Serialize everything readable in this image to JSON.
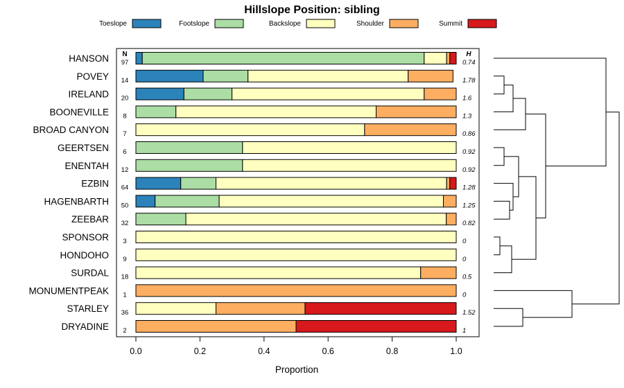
{
  "chart_data": {
    "type": "bar",
    "orientation": "horizontal",
    "stacked": true,
    "title": "Hillslope Position: sibling",
    "xlabel": "Proportion",
    "xlim": [
      0,
      1
    ],
    "xticks": [
      "0.0",
      "0.2",
      "0.4",
      "0.6",
      "0.8",
      "1.0"
    ],
    "n_header": "N",
    "h_header": "H",
    "legend_position": "top",
    "series_colors": {
      "Toeslope": "#2b83ba",
      "Footslope": "#abdda4",
      "Backslope": "#ffffbf",
      "Shoulder": "#fdae61",
      "Summit": "#d7191c"
    },
    "series": [
      {
        "name": "Toeslope"
      },
      {
        "name": "Footslope"
      },
      {
        "name": "Backslope"
      },
      {
        "name": "Shoulder"
      },
      {
        "name": "Summit"
      }
    ],
    "categories": [
      {
        "name": "HANSON",
        "n": "97",
        "h": "0.74",
        "values": [
          0.02,
          0.88,
          0.07,
          0.01,
          0.02
        ]
      },
      {
        "name": "POVEY",
        "n": "14",
        "h": "1.78",
        "values": [
          0.21,
          0.14,
          0.5,
          0.14,
          0.0
        ]
      },
      {
        "name": "IRELAND",
        "n": "20",
        "h": "1.6",
        "values": [
          0.15,
          0.15,
          0.6,
          0.1,
          0.0
        ]
      },
      {
        "name": "BOONEVILLE",
        "n": "8",
        "h": "1.3",
        "values": [
          0.0,
          0.125,
          0.625,
          0.25,
          0.0
        ]
      },
      {
        "name": "BROAD CANYON",
        "n": "7",
        "h": "0.86",
        "values": [
          0.0,
          0.0,
          0.714,
          0.286,
          0.0
        ]
      },
      {
        "name": "GEERTSEN",
        "n": "6",
        "h": "0.92",
        "values": [
          0.0,
          0.333,
          0.667,
          0.0,
          0.0
        ]
      },
      {
        "name": "ENENTAH",
        "n": "12",
        "h": "0.92",
        "values": [
          0.0,
          0.333,
          0.667,
          0.0,
          0.0
        ]
      },
      {
        "name": "EZBIN",
        "n": "64",
        "h": "1.28",
        "values": [
          0.14,
          0.11,
          0.72,
          0.01,
          0.02
        ]
      },
      {
        "name": "HAGENBARTH",
        "n": "50",
        "h": "1.25",
        "values": [
          0.06,
          0.2,
          0.7,
          0.04,
          0.0
        ]
      },
      {
        "name": "ZEEBAR",
        "n": "32",
        "h": "0.82",
        "values": [
          0.0,
          0.156,
          0.813,
          0.031,
          0.0
        ]
      },
      {
        "name": "SPONSOR",
        "n": "3",
        "h": "0",
        "values": [
          0.0,
          0.0,
          1.0,
          0.0,
          0.0
        ]
      },
      {
        "name": "HONDOHO",
        "n": "9",
        "h": "0",
        "values": [
          0.0,
          0.0,
          1.0,
          0.0,
          0.0
        ]
      },
      {
        "name": "SURDAL",
        "n": "18",
        "h": "0.5",
        "values": [
          0.0,
          0.0,
          0.889,
          0.111,
          0.0
        ]
      },
      {
        "name": "MONUMENTPEAK",
        "n": "1",
        "h": "0",
        "values": [
          0.0,
          0.0,
          0.0,
          1.0,
          0.0
        ]
      },
      {
        "name": "STARLEY",
        "n": "36",
        "h": "1.52",
        "values": [
          0.0,
          0.0,
          0.25,
          0.278,
          0.472
        ]
      },
      {
        "name": "DRYADINE",
        "n": "2",
        "h": "1",
        "values": [
          0.0,
          0.0,
          0.0,
          0.5,
          0.5
        ]
      }
    ],
    "dendrogram": true
  }
}
